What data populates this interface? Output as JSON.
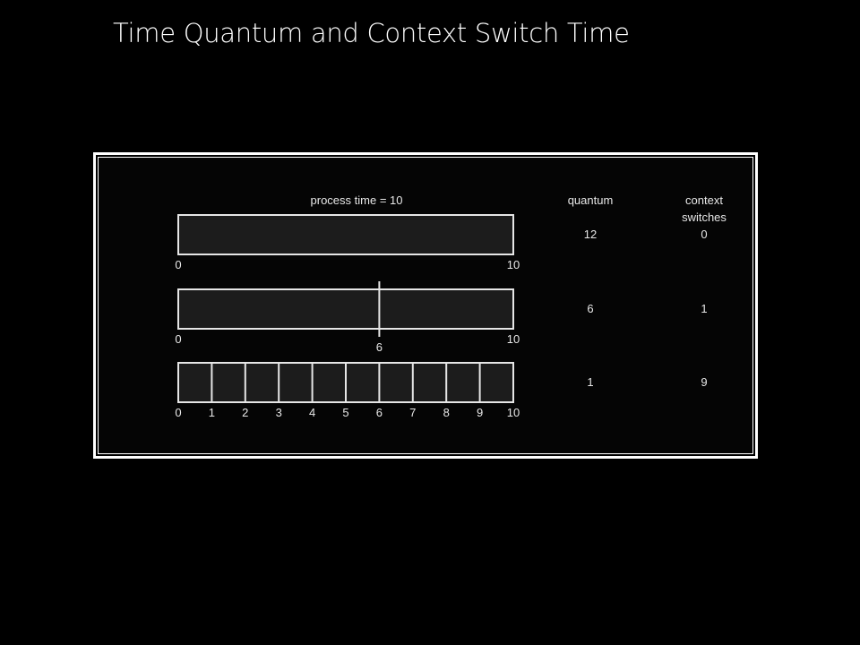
{
  "slide": {
    "title": "Time Quantum and Context Switch Time"
  },
  "figure": {
    "header_process_time": "process time = 10",
    "header_quantum": "quantum",
    "header_context_line1": "context",
    "header_context_line2": "switches",
    "rows": [
      {
        "quantum": "12",
        "context_switches": "0",
        "divisions": [],
        "tick_labels": [
          "0",
          "10"
        ]
      },
      {
        "quantum": "6",
        "context_switches": "1",
        "divisions": [
          6
        ],
        "tick_labels": [
          "0",
          "6",
          "10"
        ]
      },
      {
        "quantum": "1",
        "context_switches": "9",
        "divisions": [
          1,
          2,
          3,
          4,
          5,
          6,
          7,
          8,
          9
        ],
        "tick_labels": [
          "0",
          "1",
          "2",
          "3",
          "4",
          "5",
          "6",
          "7",
          "8",
          "9",
          "10"
        ]
      }
    ],
    "process_time": 10,
    "colors": {
      "background": "#000000",
      "frame": "#ffffff",
      "bar_fill": "#1c1c1c",
      "stroke": "#e6e6e6"
    }
  }
}
